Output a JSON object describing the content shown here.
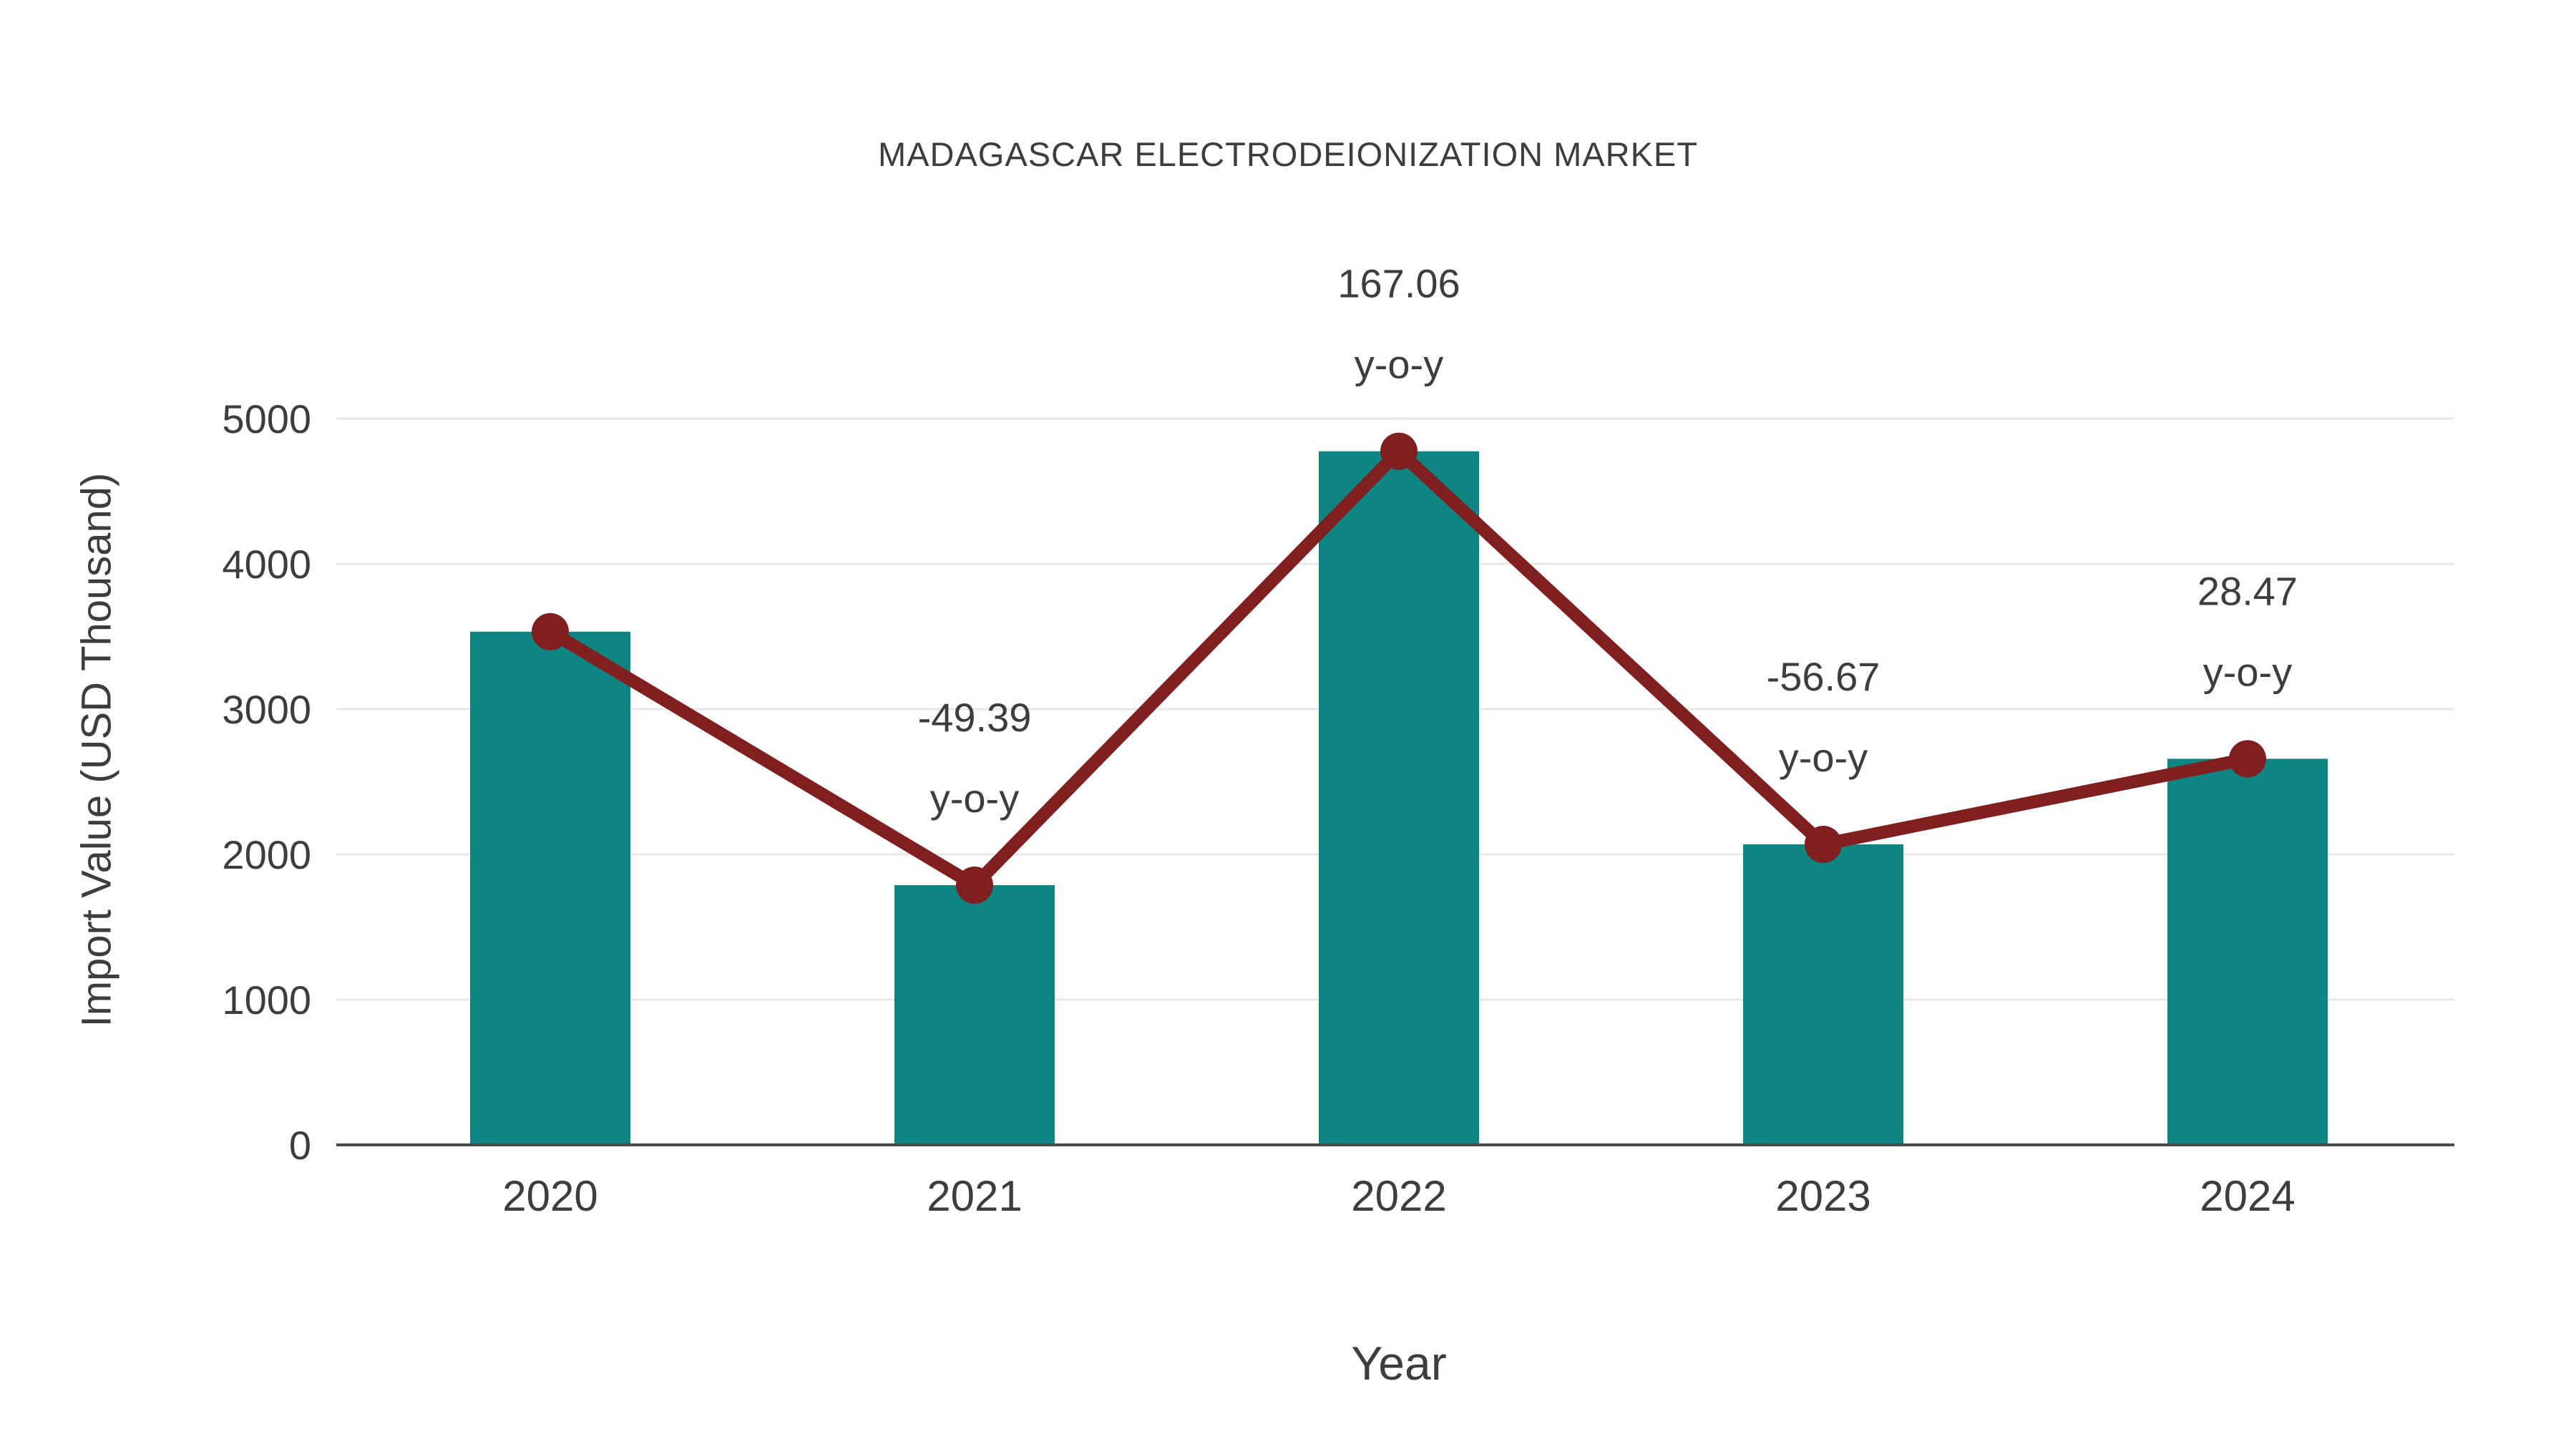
{
  "chart_data": {
    "type": "bar",
    "title": "MADAGASCAR ELECTRODEIONIZATION MARKET",
    "xlabel": "Year",
    "ylabel": "Import Value (USD Thousand)",
    "categories": [
      "2020",
      "2021",
      "2022",
      "2023",
      "2024"
    ],
    "series": [
      {
        "name": "Import Value bars",
        "type": "bar",
        "values": [
          3533,
          1788,
          4775,
          2069,
          2658
        ]
      },
      {
        "name": "Import Value trend line",
        "type": "line",
        "values": [
          3533,
          1788,
          4775,
          2069,
          2658
        ]
      }
    ],
    "annotations": [
      {
        "category_index": 1,
        "value": "-49.39",
        "label": "y-o-y"
      },
      {
        "category_index": 2,
        "value": "167.06",
        "label": "y-o-y"
      },
      {
        "category_index": 3,
        "value": "-56.67",
        "label": "y-o-y"
      },
      {
        "category_index": 4,
        "value": "28.47",
        "label": "y-o-y"
      }
    ],
    "ylim": [
      0,
      5000
    ],
    "yticks": [
      0,
      1000,
      2000,
      3000,
      4000,
      5000
    ],
    "grid": true,
    "legend_position": "none",
    "colors": {
      "bar": "#0e8582",
      "line": "#7f1f1f",
      "marker": "#7f1f1f",
      "grid": "#e8e8e8",
      "axis": "#4a4a4a",
      "text": "#3d3d3d"
    }
  }
}
